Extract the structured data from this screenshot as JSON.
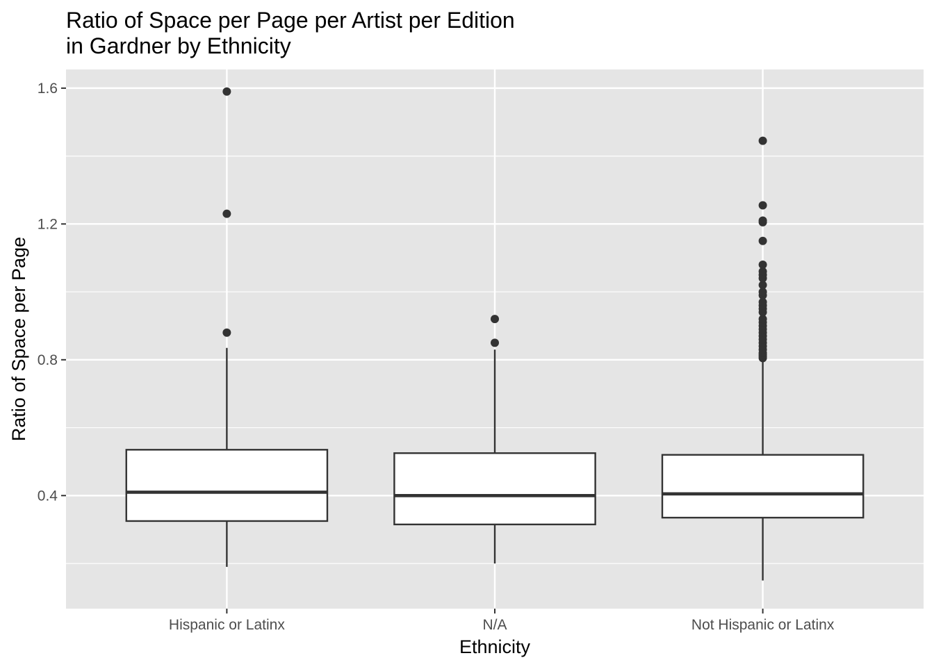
{
  "chart_data": {
    "type": "boxplot",
    "title": [
      "Ratio of Space per Page per Artist per Edition",
      "in Gardner by Ethnicity"
    ],
    "xlabel": "Ethnicity",
    "ylabel": "Ratio of Space per Page",
    "ylim": [
      0.067,
      1.655
    ],
    "y_ticks": [
      {
        "value": 0.4,
        "label": "0.4"
      },
      {
        "value": 0.8,
        "label": "0.8"
      },
      {
        "value": 1.2,
        "label": "1.2"
      },
      {
        "value": 1.6,
        "label": "1.6"
      }
    ],
    "grid": true,
    "categories": [
      "Hispanic or Latinx",
      "N/A",
      "Not Hispanic or Latinx"
    ],
    "boxes": [
      {
        "category": "Hispanic or Latinx",
        "whisker_low": 0.19,
        "q1": 0.325,
        "median": 0.41,
        "q3": 0.535,
        "whisker_high": 0.835,
        "outliers": [
          0.88,
          1.23,
          1.59
        ]
      },
      {
        "category": "N/A",
        "whisker_low": 0.2,
        "q1": 0.315,
        "median": 0.4,
        "q3": 0.525,
        "whisker_high": 0.83,
        "outliers": [
          0.85,
          0.92
        ]
      },
      {
        "category": "Not Hispanic or Latinx",
        "whisker_low": 0.15,
        "q1": 0.335,
        "median": 0.405,
        "q3": 0.52,
        "whisker_high": 0.8,
        "outliers": [
          0.805,
          0.81,
          0.815,
          0.82,
          0.83,
          0.84,
          0.85,
          0.86,
          0.87,
          0.88,
          0.89,
          0.9,
          0.91,
          0.92,
          0.94,
          0.95,
          0.96,
          0.97,
          0.99,
          1.0,
          1.02,
          1.04,
          1.05,
          1.06,
          1.08,
          1.15,
          1.205,
          1.21,
          1.255,
          1.445
        ]
      }
    ],
    "colors": {
      "panel": "#e5e5e5",
      "grid": "#ffffff",
      "box_fill": "#ffffff",
      "stroke": "#333333",
      "point": "#333333"
    }
  }
}
